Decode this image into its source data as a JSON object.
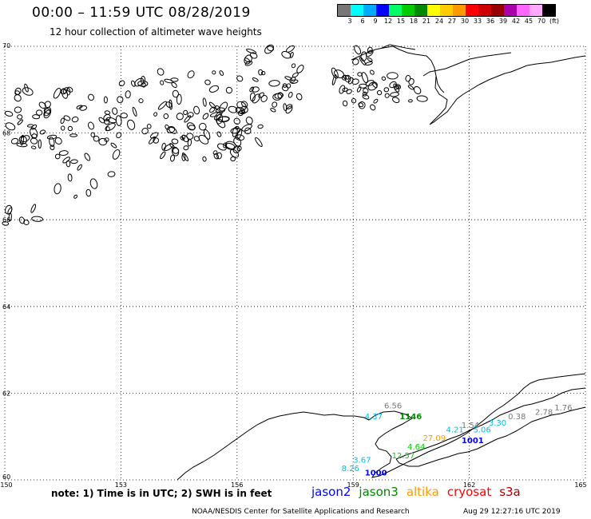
{
  "title": "00:00 – 11:59 UTC 08/28/2019",
  "subtitle": "12 hour collection of altimeter wave heights",
  "colorbar": {
    "colors": [
      "#777777",
      "#00ffff",
      "#00aaff",
      "#0000ff",
      "#00ff66",
      "#00cc00",
      "#008800",
      "#ffff00",
      "#ffcc00",
      "#ff9900",
      "#ff0000",
      "#cc0000",
      "#990000",
      "#aa00aa",
      "#ff66ff",
      "#ffaaff",
      "#000000"
    ],
    "labels": [
      "3",
      "6",
      "9",
      "12",
      "15",
      "18",
      "21",
      "24",
      "27",
      "30",
      "33",
      "36",
      "39",
      "42",
      "45",
      "70",
      "(ft)"
    ]
  },
  "axes": {
    "lon_ticks": [
      "150",
      "153",
      "156",
      "159",
      "162",
      "165"
    ],
    "lat_ticks": [
      "70",
      "68",
      "66",
      "64",
      "62",
      "60"
    ],
    "lon_range": [
      150,
      165
    ],
    "lat_range": [
      60,
      70
    ],
    "grid": true
  },
  "observations": [
    {
      "text": "4.37",
      "lon": 159.3,
      "lat": 61.4,
      "color": "#00bbee"
    },
    {
      "text": "6.56",
      "lon": 159.8,
      "lat": 61.65,
      "color": "#777777"
    },
    {
      "text": "1146",
      "lon": 160.2,
      "lat": 61.4,
      "color": "#008800",
      "bold": true
    },
    {
      "text": "8.26",
      "lon": 158.7,
      "lat": 60.2,
      "color": "#00bbee"
    },
    {
      "text": "3.67",
      "lon": 159.0,
      "lat": 60.4,
      "color": "#00bbee"
    },
    {
      "text": "1000",
      "lon": 159.3,
      "lat": 60.1,
      "color": "#0000ff",
      "bold": true
    },
    {
      "text": "12.57",
      "lon": 160.0,
      "lat": 60.5,
      "color": "#00cc00"
    },
    {
      "text": "4.64",
      "lon": 160.4,
      "lat": 60.7,
      "color": "#00cc00"
    },
    {
      "text": "27.09",
      "lon": 160.8,
      "lat": 60.9,
      "color": "#ff9900"
    },
    {
      "text": "4.21",
      "lon": 161.4,
      "lat": 61.1,
      "color": "#00bbee"
    },
    {
      "text": "1.54",
      "lon": 161.8,
      "lat": 61.2,
      "color": "#777777"
    },
    {
      "text": "1001",
      "lon": 161.8,
      "lat": 60.85,
      "color": "#0000ff",
      "bold": true
    },
    {
      "text": "5.06",
      "lon": 162.1,
      "lat": 61.1,
      "color": "#00bbee"
    },
    {
      "text": "3.30",
      "lon": 162.5,
      "lat": 61.25,
      "color": "#00bbee"
    },
    {
      "text": "0.38",
      "lon": 163.0,
      "lat": 61.4,
      "color": "#777777"
    },
    {
      "text": "2.78",
      "lon": 163.7,
      "lat": 61.5,
      "color": "#777777"
    },
    {
      "text": "1.76",
      "lon": 164.2,
      "lat": 61.6,
      "color": "#777777"
    }
  ],
  "note": "note:  1) Time is in UTC;  2) SWH is in feet",
  "satellites": [
    {
      "name": "jason2",
      "color": "#0000ff"
    },
    {
      "name": "jason3",
      "color": "#008800"
    },
    {
      "name": "altika",
      "color": "#ff9900"
    },
    {
      "name": "cryosat",
      "color": "#ff0000"
    },
    {
      "name": "s3a",
      "color": "#aa0000"
    }
  ],
  "footer": "NOAA/NESDIS Center for Satellite Applications and Research",
  "footer_time": "Aug 29 12:27:16 UTC 2019"
}
